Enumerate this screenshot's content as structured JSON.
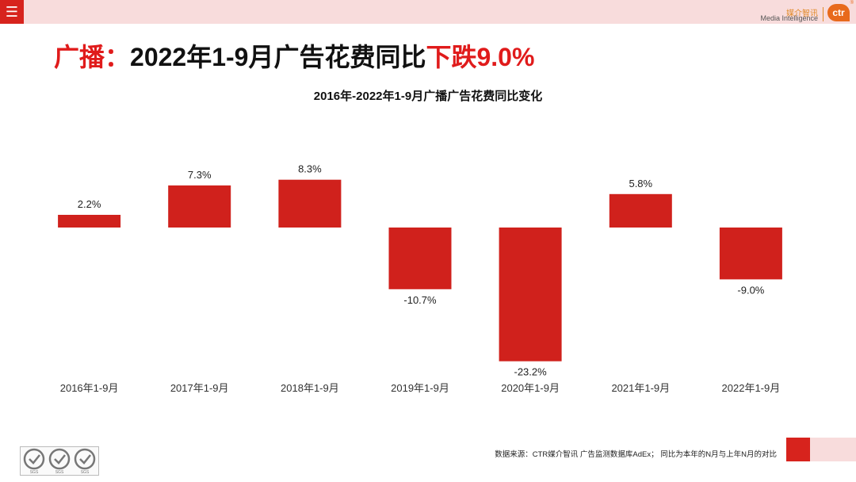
{
  "header": {
    "menu_icon": "hamburger-menu-icon",
    "logo_cn": "媒介智讯",
    "logo_en": "Media Intelligence",
    "logo_mark": "ctr",
    "logo_reg": "®"
  },
  "title": {
    "prefix": "广播：",
    "middle": "2022年1-9月广告花费同比",
    "emphasis": "下跌9.0%"
  },
  "chart_data": {
    "type": "bar",
    "title": "2016年-2022年1-9月广播广告花费同比变化",
    "categories": [
      "2016年1-9月",
      "2017年1-9月",
      "2018年1-9月",
      "2019年1-9月",
      "2020年1-9月",
      "2021年1-9月",
      "2022年1-9月"
    ],
    "values": [
      2.2,
      7.3,
      8.3,
      -10.7,
      -23.2,
      5.8,
      -9.0
    ],
    "labels": [
      "2.2%",
      "7.3%",
      "8.3%",
      "-10.7%",
      "-23.2%",
      "5.8%",
      "-9.0%"
    ],
    "unit": "%",
    "ylim": [
      -23.2,
      8.3
    ],
    "color": "#d0211c",
    "grid": false
  },
  "footer": {
    "source": "数据来源：CTR媒介智讯 广告监测数据库AdEx； 同比为本年的N月与上年N月的对比",
    "badge_text": [
      "SGS",
      "SGS",
      "SGS"
    ]
  },
  "colors": {
    "accent": "#d7231d",
    "accent_light": "#f8dcdc",
    "title_red": "#e01b1b",
    "bar": "#d0211c"
  }
}
